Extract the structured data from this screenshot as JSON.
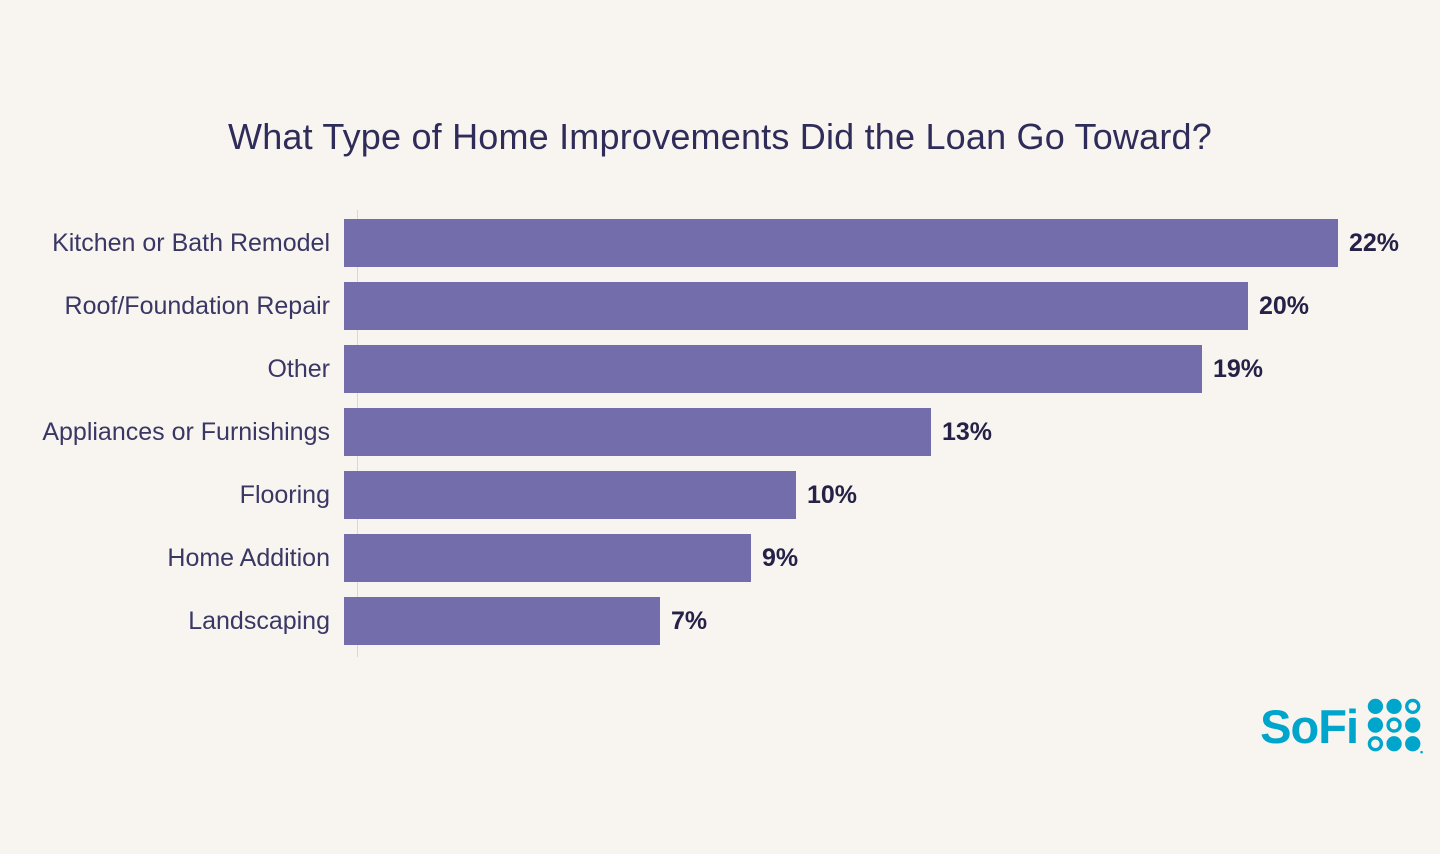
{
  "page": {
    "background_color": "#F8F5F0"
  },
  "chart_data": {
    "type": "bar",
    "orientation": "horizontal",
    "title": "What Type of Home Improvements Did the Loan Go Toward?",
    "categories": [
      "Kitchen or Bath Remodel",
      "Roof/Foundation Repair",
      "Other",
      "Appliances or Furnishings",
      "Flooring",
      "Home Addition",
      "Landscaping"
    ],
    "values": [
      22,
      20,
      19,
      13,
      10,
      9,
      7
    ],
    "value_labels": [
      "22%",
      "20%",
      "19%",
      "13%",
      "10%",
      "9%",
      "7%"
    ],
    "xlabel": "",
    "ylabel": "",
    "xlim": [
      0,
      22
    ],
    "grid": false,
    "legend": false,
    "bar_color": "#736DAC",
    "title_color": "#2F2C5A",
    "category_label_color": "#3A3765",
    "value_label_color": "#262247",
    "axis_line_color": "#DBD7D1"
  },
  "branding": {
    "logo_text": "SoFi",
    "logo_color": "#00A5CB"
  }
}
